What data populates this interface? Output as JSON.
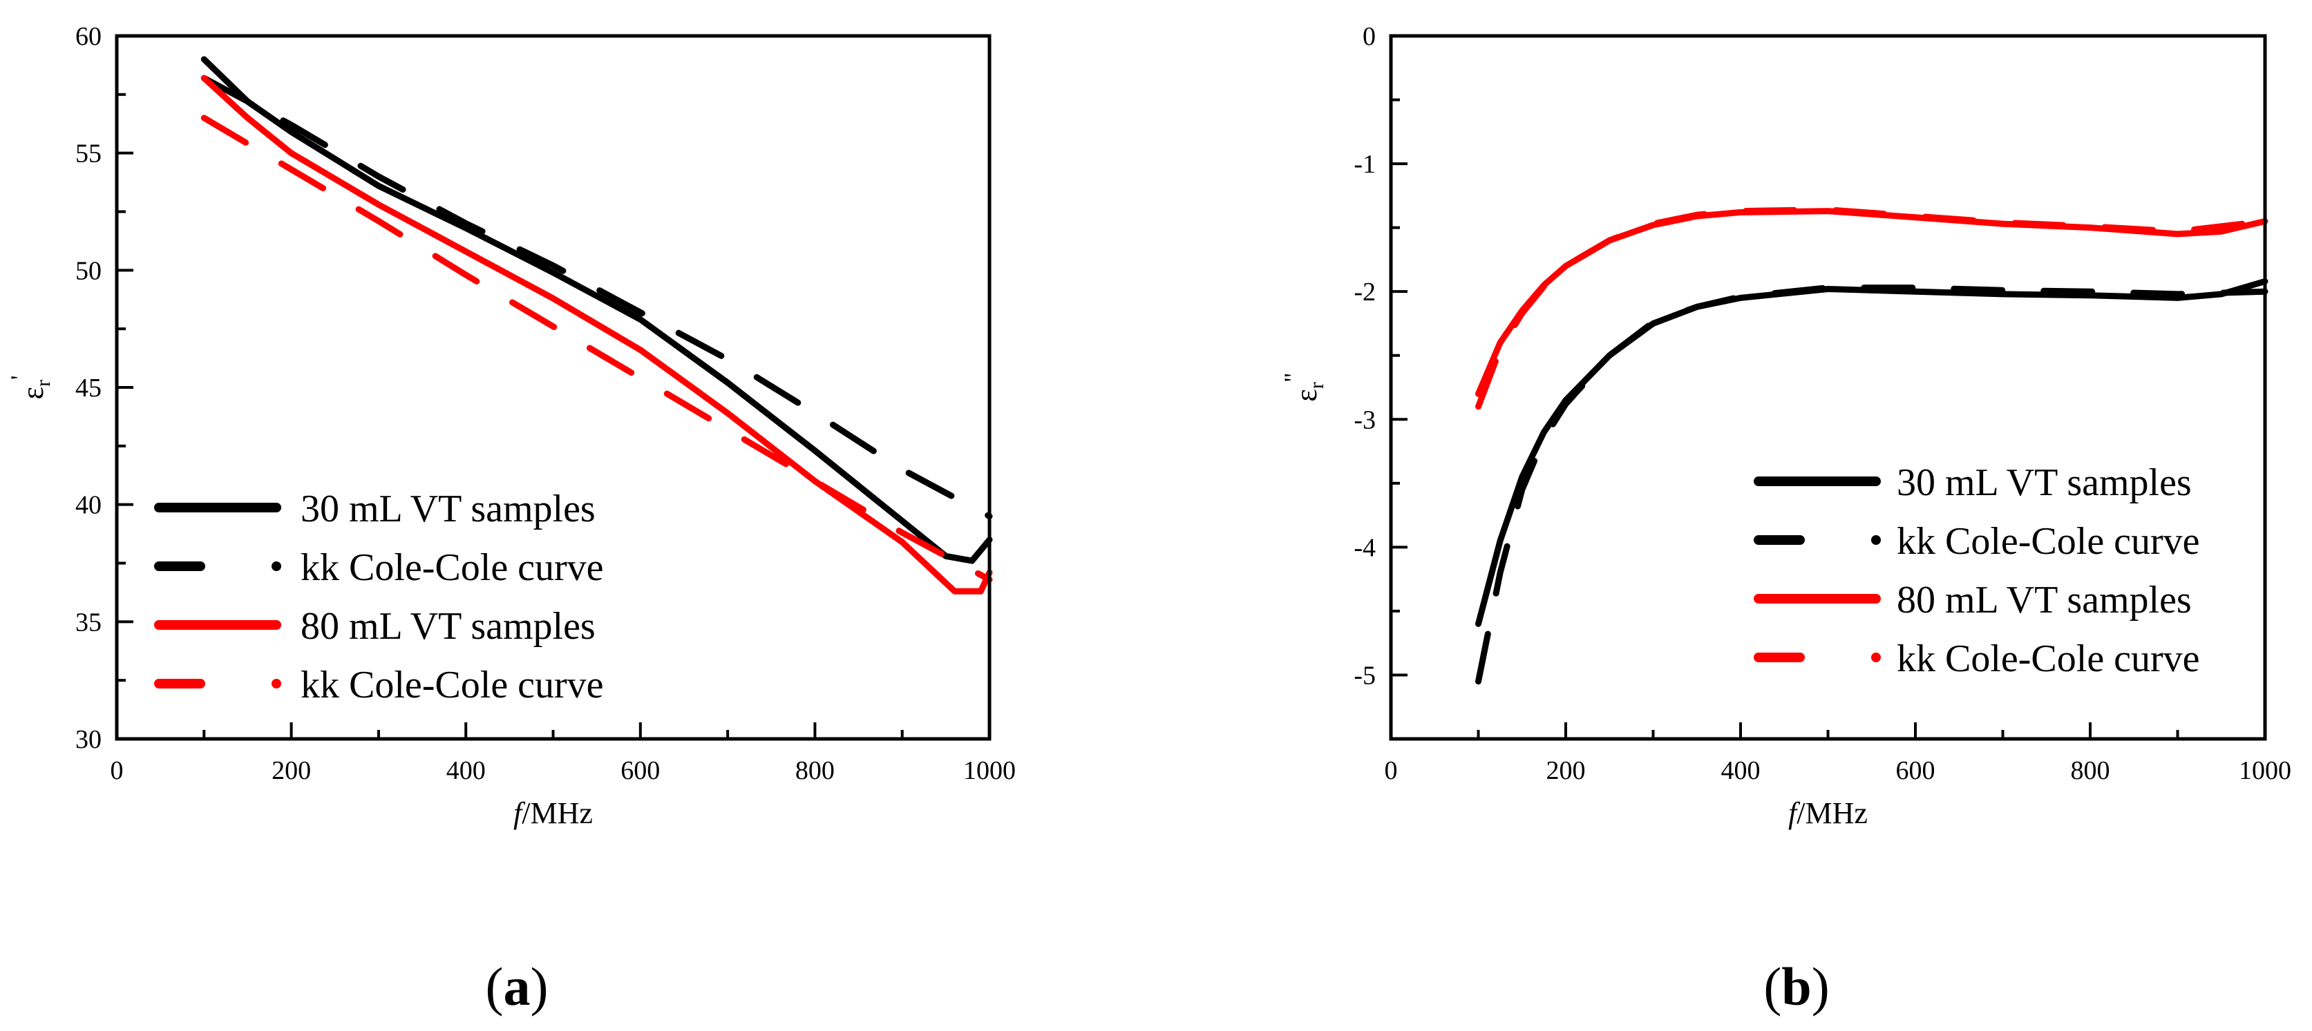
{
  "figure": {
    "captions": [
      {
        "paren_open": "(",
        "letter": "a",
        "paren_close": ")"
      },
      {
        "paren_open": "(",
        "letter": "b",
        "paren_close": ")"
      }
    ]
  },
  "colors": {
    "black": "#000000",
    "red": "#ff0000"
  },
  "chart_data": [
    {
      "type": "line",
      "panel": "a",
      "title": "",
      "xlabel": "f/MHz",
      "xlabel_italic_part": "f",
      "xlabel_rest": "/MHz",
      "ylabel": "εr'",
      "ylabel_main": "ε",
      "ylabel_sub": "r",
      "ylabel_prime": "'",
      "xlim": [
        0,
        1000
      ],
      "ylim": [
        30,
        60
      ],
      "xticks": [
        0,
        200,
        400,
        600,
        800,
        1000
      ],
      "xtick_labels": [
        "0",
        "200",
        "400",
        "600",
        "800",
        "1000"
      ],
      "xminor": [
        100,
        300,
        500,
        700,
        900
      ],
      "yticks": [
        30,
        35,
        40,
        45,
        50,
        55,
        60
      ],
      "ytick_labels": [
        "30",
        "35",
        "40",
        "45",
        "50",
        "55",
        "60"
      ],
      "yminor": [
        32.5,
        37.5,
        42.5,
        47.5,
        52.5,
        57.5
      ],
      "grid": false,
      "legend_position": "lower left",
      "series": [
        {
          "name": "30 mL VT samples",
          "color": "#000000",
          "style": "solid",
          "x": [
            100,
            150,
            200,
            300,
            400,
            500,
            600,
            700,
            800,
            900,
            950,
            980,
            1000
          ],
          "y": [
            59.0,
            57.2,
            55.9,
            53.6,
            51.8,
            49.9,
            47.9,
            45.2,
            42.3,
            39.3,
            37.8,
            37.6,
            38.5
          ]
        },
        {
          "name": "kk Cole-Cole curve",
          "color": "#000000",
          "style": "dashed",
          "x": [
            100,
            200,
            300,
            400,
            500,
            600,
            700,
            800,
            900,
            1000
          ],
          "y": [
            58.2,
            56.2,
            54.0,
            52.0,
            50.2,
            48.2,
            46.2,
            43.9,
            41.5,
            39.5
          ]
        },
        {
          "name": "80 mL VT samples",
          "color": "#ff0000",
          "style": "solid",
          "x": [
            100,
            150,
            200,
            300,
            400,
            500,
            600,
            700,
            800,
            900,
            960,
            990,
            1000
          ],
          "y": [
            58.2,
            56.5,
            55.0,
            52.8,
            50.8,
            48.8,
            46.6,
            43.9,
            41.0,
            38.4,
            36.3,
            36.3,
            37.1
          ]
        },
        {
          "name": "kk Cole-Cole curve",
          "color": "#ff0000",
          "style": "dashed",
          "x": [
            100,
            200,
            300,
            400,
            500,
            600,
            700,
            800,
            900,
            1000
          ],
          "y": [
            56.5,
            54.3,
            52.1,
            49.8,
            47.6,
            45.4,
            43.2,
            41.0,
            38.8,
            36.8
          ]
        }
      ]
    },
    {
      "type": "line",
      "panel": "b",
      "title": "",
      "xlabel": "f/MHz",
      "xlabel_italic_part": "f",
      "xlabel_rest": "/MHz",
      "ylabel": "εr''",
      "ylabel_main": "ε",
      "ylabel_sub": "r",
      "ylabel_prime": "''",
      "xlim": [
        0,
        1000
      ],
      "ylim": [
        -5.5,
        0
      ],
      "xticks": [
        0,
        200,
        400,
        600,
        800,
        1000
      ],
      "xtick_labels": [
        "0",
        "200",
        "400",
        "600",
        "800",
        "1000"
      ],
      "xminor": [
        100,
        300,
        500,
        700,
        900
      ],
      "yticks": [
        -5,
        -4,
        -3,
        -2,
        -1,
        0
      ],
      "ytick_labels": [
        "-5",
        "-4",
        "-3",
        "-2",
        "-1",
        "0"
      ],
      "yminor": [
        -5.5,
        -4.5,
        -3.5,
        -2.5,
        -1.5,
        -0.5
      ],
      "grid": false,
      "legend_position": "lower right",
      "series": [
        {
          "name": "30 mL VT samples",
          "color": "#000000",
          "style": "solid",
          "x": [
            100,
            125,
            150,
            175,
            200,
            250,
            300,
            350,
            400,
            500,
            600,
            700,
            800,
            900,
            950,
            1000
          ],
          "y": [
            -4.6,
            -3.95,
            -3.45,
            -3.1,
            -2.85,
            -2.5,
            -2.25,
            -2.12,
            -2.05,
            -1.98,
            -2.0,
            -2.02,
            -2.03,
            -2.05,
            -2.02,
            -1.92
          ]
        },
        {
          "name": "kk Cole-Cole curve",
          "color": "#000000",
          "style": "dashed",
          "x": [
            100,
            125,
            150,
            175,
            200,
            250,
            300,
            350,
            400,
            500,
            600,
            700,
            800,
            900,
            1000
          ],
          "y": [
            -5.05,
            -4.2,
            -3.55,
            -3.15,
            -2.88,
            -2.5,
            -2.24,
            -2.12,
            -2.04,
            -1.97,
            -1.97,
            -1.99,
            -2.0,
            -2.02,
            -2.0
          ]
        },
        {
          "name": "80 mL VT samples",
          "color": "#ff0000",
          "style": "solid",
          "x": [
            100,
            125,
            150,
            175,
            200,
            250,
            300,
            350,
            400,
            500,
            600,
            700,
            800,
            900,
            950,
            1000
          ],
          "y": [
            -2.8,
            -2.4,
            -2.15,
            -1.95,
            -1.8,
            -1.6,
            -1.48,
            -1.41,
            -1.38,
            -1.37,
            -1.42,
            -1.47,
            -1.5,
            -1.55,
            -1.53,
            -1.45
          ]
        },
        {
          "name": "kk Cole-Cole curve",
          "color": "#ff0000",
          "style": "dashed",
          "x": [
            100,
            125,
            150,
            175,
            200,
            250,
            300,
            350,
            400,
            500,
            600,
            700,
            800,
            900,
            1000
          ],
          "y": [
            -2.9,
            -2.45,
            -2.17,
            -1.96,
            -1.8,
            -1.6,
            -1.47,
            -1.4,
            -1.37,
            -1.36,
            -1.41,
            -1.46,
            -1.49,
            -1.53,
            -1.45
          ]
        }
      ]
    }
  ]
}
